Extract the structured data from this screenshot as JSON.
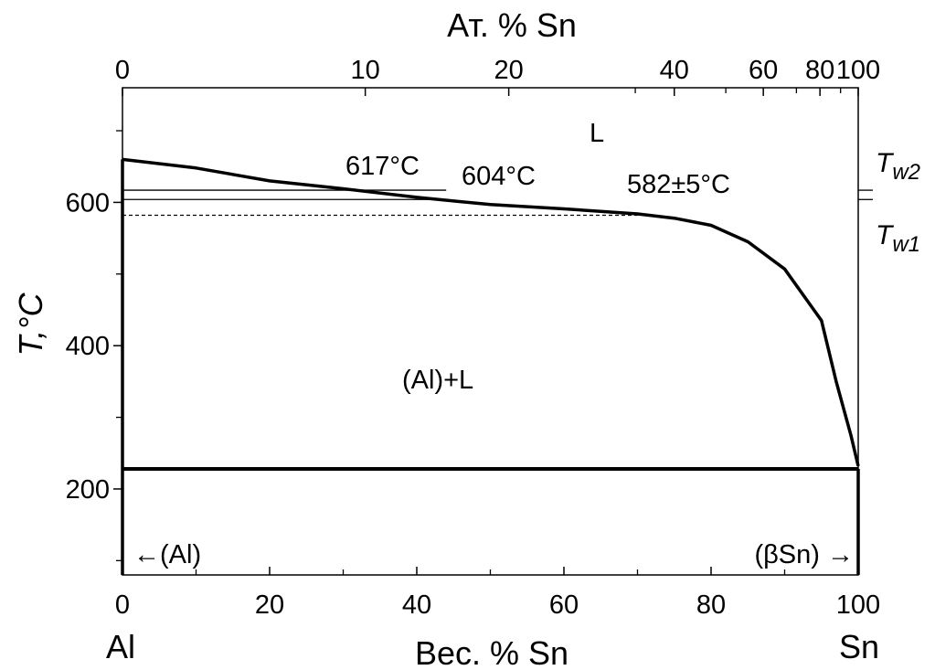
{
  "chart_data": {
    "type": "line",
    "x_axis": {
      "label": "Вес. % Sn",
      "range": [
        0,
        100
      ],
      "ticks": [
        "0",
        "20",
        "40",
        "60",
        "80",
        "100"
      ],
      "minor_ticks": [
        10,
        30,
        50,
        70,
        90
      ]
    },
    "top_axis": {
      "label": "Ат. % Sn",
      "ticks": [
        {
          "label": "0",
          "wt": 0
        },
        {
          "label": "10",
          "wt": 33
        },
        {
          "label": "20",
          "wt": 52.5
        },
        {
          "label": "40",
          "wt": 75
        },
        {
          "label": "60",
          "wt": 87.1
        },
        {
          "label": "80",
          "wt": 94.8
        },
        {
          "label": "100",
          "wt": 100
        }
      ],
      "minor_ticks_wt": [
        69.7,
        82,
        91.6,
        97.6
      ]
    },
    "y_axis": {
      "label": "T,°C",
      "range": [
        80,
        760
      ],
      "ticks": [
        "200",
        "400",
        "600"
      ],
      "minor_ticks": [
        100,
        300,
        500,
        700
      ]
    },
    "end_labels": {
      "left": "Al",
      "right": "Sn"
    },
    "liquidus": {
      "x": [
        0,
        10,
        20,
        30,
        40,
        50,
        60,
        70,
        75,
        80,
        85,
        90,
        95,
        97,
        99,
        100
      ],
      "y": [
        660,
        648,
        630,
        619,
        607,
        597,
        591,
        584,
        578,
        568,
        545,
        507,
        435,
        350,
        275,
        232
      ]
    },
    "eutectic": {
      "y": 228,
      "x_range": [
        0,
        100
      ]
    },
    "isotherms": [
      {
        "temp": 617,
        "x_range": [
          0,
          44
        ]
      },
      {
        "temp": 604,
        "x_range": [
          0,
          44
        ]
      }
    ],
    "dashed_isotherm": {
      "temp": 582,
      "x_range": [
        0,
        70
      ]
    },
    "right_ticks": [
      {
        "label": "T",
        "sub": "w2",
        "temp": 617
      },
      {
        "label": "T",
        "sub": "w1",
        "temp": 604
      }
    ],
    "annotations": {
      "liquid": "L",
      "t617": "617°C",
      "t604": "604°C",
      "t582": "582±5°C",
      "two_phase": "(Al)+L",
      "al_solid": "←(Al)",
      "sn_solid": "(βSn) →"
    }
  }
}
